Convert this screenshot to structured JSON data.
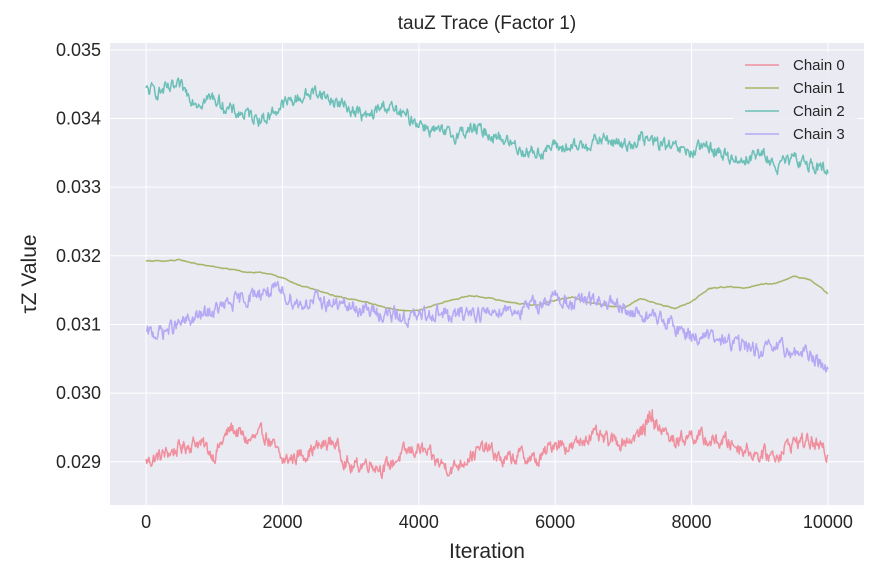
{
  "chart_data": {
    "type": "line",
    "title": "tauZ Trace (Factor 1)",
    "xlabel": "Iteration",
    "ylabel": "τZ Value",
    "xlim": [
      -530,
      10530
    ],
    "ylim": [
      0.02837,
      0.0351
    ],
    "xticks": [
      0,
      2000,
      4000,
      6000,
      8000,
      10000
    ],
    "xtick_labels": [
      "0",
      "2000",
      "4000",
      "6000",
      "8000",
      "10000"
    ],
    "yticks": [
      0.029,
      0.03,
      0.031,
      0.032,
      0.033,
      0.034,
      0.035
    ],
    "ytick_labels": [
      "0.029",
      "0.030",
      "0.031",
      "0.032",
      "0.033",
      "0.034",
      "0.035"
    ],
    "grid": true,
    "legend_position": "top-right",
    "series": [
      {
        "name": "Chain 0",
        "color": "#f0909f",
        "x": [
          0,
          250,
          500,
          750,
          1000,
          1250,
          1500,
          1750,
          2000,
          2250,
          2500,
          2750,
          3000,
          3250,
          3500,
          3750,
          4000,
          4250,
          4500,
          4750,
          5000,
          5250,
          5500,
          5750,
          6000,
          6250,
          6500,
          6750,
          7000,
          7250,
          7400,
          7500,
          7750,
          8000,
          8250,
          8500,
          8750,
          9000,
          9250,
          9500,
          9750,
          10000
        ],
        "y": [
          0.029,
          0.0291,
          0.0292,
          0.0293,
          0.0291,
          0.0295,
          0.0293,
          0.0294,
          0.029,
          0.0291,
          0.0292,
          0.0293,
          0.0289,
          0.029,
          0.0289,
          0.0291,
          0.0292,
          0.029,
          0.0289,
          0.0291,
          0.0292,
          0.029,
          0.0291,
          0.029,
          0.0293,
          0.0292,
          0.0294,
          0.0293,
          0.0293,
          0.0294,
          0.0297,
          0.0295,
          0.0293,
          0.0294,
          0.0293,
          0.0293,
          0.0292,
          0.0291,
          0.0291,
          0.0293,
          0.0293,
          0.0291
        ]
      },
      {
        "name": "Chain 1",
        "color": "#a9b46a",
        "x": [
          0,
          250,
          500,
          750,
          1000,
          1250,
          1500,
          1750,
          2000,
          2250,
          2500,
          2750,
          3000,
          3250,
          3500,
          3750,
          4000,
          4250,
          4500,
          4750,
          5000,
          5250,
          5500,
          5750,
          6000,
          6250,
          6500,
          6750,
          7000,
          7250,
          7500,
          7750,
          8000,
          8250,
          8500,
          8750,
          9000,
          9250,
          9500,
          9750,
          10000
        ],
        "y": [
          0.03193,
          0.03192,
          0.03194,
          0.03188,
          0.03184,
          0.0318,
          0.03176,
          0.03175,
          0.03168,
          0.03157,
          0.0315,
          0.03142,
          0.03137,
          0.03132,
          0.03125,
          0.0312,
          0.0312,
          0.03129,
          0.03136,
          0.03142,
          0.03139,
          0.03134,
          0.0313,
          0.03128,
          0.03135,
          0.0314,
          0.03132,
          0.03128,
          0.03124,
          0.03138,
          0.0313,
          0.03123,
          0.03133,
          0.03152,
          0.03155,
          0.03153,
          0.03158,
          0.0316,
          0.0317,
          0.03165,
          0.03145
        ]
      },
      {
        "name": "Chain 2",
        "color": "#6cc0b8",
        "x": [
          0,
          250,
          500,
          750,
          1000,
          1250,
          1500,
          1750,
          2000,
          2250,
          2500,
          2750,
          3000,
          3250,
          3500,
          3750,
          4000,
          4250,
          4500,
          4750,
          5000,
          5250,
          5500,
          5750,
          6000,
          6250,
          6500,
          6750,
          7000,
          7250,
          7500,
          7750,
          8000,
          8250,
          8500,
          8750,
          9000,
          9250,
          9500,
          9750,
          10000
        ],
        "y": [
          0.0344,
          0.0344,
          0.03445,
          0.03425,
          0.0343,
          0.0341,
          0.03405,
          0.034,
          0.0342,
          0.0343,
          0.0344,
          0.03425,
          0.03415,
          0.034,
          0.0342,
          0.03405,
          0.03395,
          0.0338,
          0.03375,
          0.03385,
          0.0338,
          0.0337,
          0.03355,
          0.0335,
          0.0336,
          0.03355,
          0.03365,
          0.0337,
          0.0336,
          0.0337,
          0.03365,
          0.03355,
          0.0335,
          0.0336,
          0.03345,
          0.0334,
          0.0335,
          0.0333,
          0.0334,
          0.03335,
          0.0332
        ]
      },
      {
        "name": "Chain 3",
        "color": "#b5a8f5",
        "x": [
          0,
          250,
          500,
          750,
          1000,
          1250,
          1500,
          1750,
          2000,
          2250,
          2500,
          2750,
          3000,
          3250,
          3500,
          3750,
          4000,
          4250,
          4500,
          4750,
          5000,
          5250,
          5500,
          5750,
          6000,
          6250,
          6500,
          6750,
          7000,
          7250,
          7500,
          7750,
          8000,
          8250,
          8500,
          8750,
          9000,
          9250,
          9500,
          9750,
          10000
        ],
        "y": [
          0.03085,
          0.0309,
          0.031,
          0.0311,
          0.0312,
          0.0313,
          0.0314,
          0.0315,
          0.03145,
          0.0313,
          0.03135,
          0.0313,
          0.03125,
          0.0312,
          0.03115,
          0.0311,
          0.0311,
          0.0312,
          0.0311,
          0.0312,
          0.03115,
          0.03125,
          0.0312,
          0.0313,
          0.0314,
          0.0313,
          0.03135,
          0.0313,
          0.0312,
          0.03115,
          0.0311,
          0.03095,
          0.03085,
          0.0308,
          0.03075,
          0.0307,
          0.0306,
          0.03065,
          0.0306,
          0.03055,
          0.03035
        ]
      }
    ]
  }
}
